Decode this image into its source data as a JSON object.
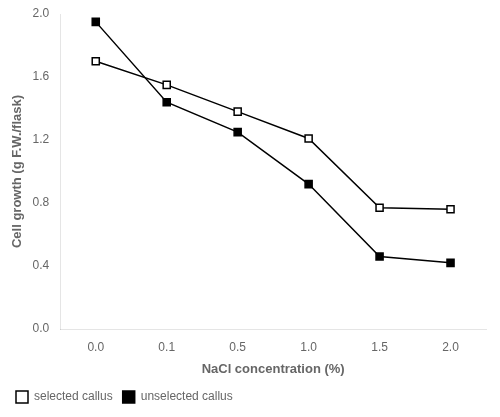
{
  "chart_data": {
    "type": "line",
    "x_label": "NaCl concentration (%)",
    "y_label": "Cell growth (g F.W./flask)",
    "categories": [
      "0.0",
      "0.1",
      "0.5",
      "1.0",
      "1.5",
      "2.0"
    ],
    "series": [
      {
        "name": "selected callus",
        "color": "#000000",
        "marker": "open_square",
        "line_style": "solid",
        "values": [
          1.7,
          1.55,
          1.38,
          1.21,
          0.77,
          0.76
        ]
      },
      {
        "name": "unselected callus",
        "color": "#000000",
        "marker": "square",
        "line_style": "solid",
        "values": [
          1.95,
          1.44,
          1.25,
          0.92,
          0.46,
          0.42
        ]
      }
    ],
    "ylim": [
      0.0,
      2.0
    ],
    "yticks": [
      {
        "value": 0.0,
        "label": "0.0"
      },
      0.4,
      0.8,
      1.2,
      1.6,
      {
        "value": 2.0,
        "label": "2.0"
      }
    ],
    "grid": false,
    "legend": "lower left"
  }
}
